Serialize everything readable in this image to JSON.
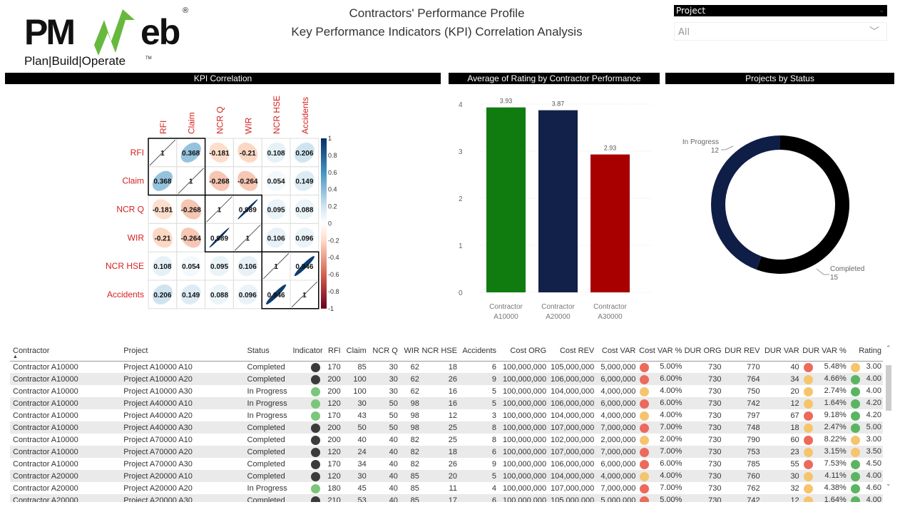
{
  "header": {
    "logo_text": "PMWeb",
    "logo_tagline": "Plan|Build|Operate",
    "title": "Contractors' Performance Profile",
    "subtitle": "Key Performance Indicators (KPI) Correlation Analysis"
  },
  "slicer": {
    "label": "Project",
    "value": "All"
  },
  "panels": {
    "kpi": "KPI Correlation",
    "rating": "Average of Rating by Contractor Performance",
    "status": "Projects by Status"
  },
  "colors": {
    "green": "#107c10",
    "navy": "#12214a",
    "red": "#a80000",
    "completed": "#000000",
    "in_progress": "#0f1e46",
    "dot_red": "#ec6a5c",
    "dot_yellow": "#f6c46c",
    "dot_green": "#5bb462",
    "dot_dark": "#3b3b3b",
    "dot_lightgreen": "#7bc67b"
  },
  "chart_data": [
    {
      "type": "heatmap",
      "title": "KPI Correlation",
      "labels": [
        "RFI",
        "Claim",
        "NCR Q",
        "WIR",
        "NCR HSE",
        "Accidents"
      ],
      "matrix": [
        [
          1,
          0.368,
          -0.181,
          -0.21,
          0.108,
          0.206
        ],
        [
          0.368,
          1,
          -0.268,
          -0.264,
          0.054,
          0.149
        ],
        [
          -0.181,
          -0.268,
          1,
          0.989,
          0.095,
          0.088
        ],
        [
          -0.21,
          -0.264,
          0.989,
          1,
          0.106,
          0.096
        ],
        [
          0.108,
          0.054,
          0.095,
          0.106,
          1,
          0.946
        ],
        [
          0.206,
          0.149,
          0.088,
          0.096,
          0.946,
          1
        ]
      ],
      "colorbar_ticks": [
        "1",
        "0.8",
        "0.6",
        "0.4",
        "0.2",
        "0",
        "-0.2",
        "-0.4",
        "-0.6",
        "-0.8",
        "-1"
      ],
      "clusters": [
        [
          0,
          1
        ],
        [
          2,
          3
        ],
        [
          4,
          5
        ]
      ]
    },
    {
      "type": "bar",
      "title": "Average of Rating by Contractor Performance",
      "categories": [
        "Contractor A10000",
        "Contractor A20000",
        "Contractor A30000"
      ],
      "values": [
        3.93,
        3.87,
        2.93
      ],
      "data_labels": [
        "3.93",
        "3.87",
        "2.93"
      ],
      "ylim": [
        0,
        4
      ],
      "yticks": [
        "0",
        "1",
        "2",
        "3",
        "4"
      ],
      "grid": true
    },
    {
      "type": "pie",
      "donut": true,
      "title": "Projects by Status",
      "slices": [
        {
          "label": "Completed",
          "value": 15
        },
        {
          "label": "In Progress",
          "value": 12
        }
      ]
    }
  ],
  "table": {
    "columns": [
      "Contractor",
      "Project",
      "Status",
      "Indicator",
      "RFI",
      "Claim",
      "NCR Q",
      "WIR",
      "NCR HSE",
      "Accidents",
      "Cost ORG",
      "Cost REV",
      "Cost VAR",
      "Cost VAR %",
      "DUR ORG",
      "DUR REV",
      "DUR VAR",
      "DUR VAR %",
      "Rating"
    ],
    "rows": [
      [
        "Contractor A10000",
        "Project A10000 A10",
        "Completed",
        "dark",
        "170",
        "85",
        "30",
        "62",
        "18",
        "6",
        "100,000,000",
        "105,000,000",
        "5,000,000",
        "red",
        "5.00%",
        "730",
        "770",
        "40",
        "red",
        "5.48%",
        "yellow",
        "3.00"
      ],
      [
        "Contractor A10000",
        "Project A10000 A20",
        "Completed",
        "dark",
        "200",
        "100",
        "30",
        "62",
        "26",
        "9",
        "100,000,000",
        "106,000,000",
        "6,000,000",
        "red",
        "6.00%",
        "730",
        "764",
        "34",
        "yellow",
        "4.66%",
        "green",
        "4.00"
      ],
      [
        "Contractor A10000",
        "Project A10000 A30",
        "In Progress",
        "lightgreen",
        "200",
        "100",
        "30",
        "62",
        "16",
        "5",
        "100,000,000",
        "104,000,000",
        "4,000,000",
        "yellow",
        "4.00%",
        "730",
        "750",
        "20",
        "yellow",
        "2.74%",
        "green",
        "4.00"
      ],
      [
        "Contractor A10000",
        "Project A40000 A10",
        "In Progress",
        "lightgreen",
        "120",
        "30",
        "50",
        "98",
        "16",
        "5",
        "100,000,000",
        "106,000,000",
        "6,000,000",
        "red",
        "6.00%",
        "730",
        "742",
        "12",
        "yellow",
        "1.64%",
        "green",
        "4.20"
      ],
      [
        "Contractor A10000",
        "Project A40000 A20",
        "In Progress",
        "lightgreen",
        "170",
        "43",
        "50",
        "98",
        "12",
        "3",
        "100,000,000",
        "104,000,000",
        "4,000,000",
        "yellow",
        "4.00%",
        "730",
        "797",
        "67",
        "red",
        "9.18%",
        "green",
        "4.20"
      ],
      [
        "Contractor A10000",
        "Project A40000 A30",
        "Completed",
        "dark",
        "200",
        "50",
        "50",
        "98",
        "25",
        "8",
        "100,000,000",
        "107,000,000",
        "7,000,000",
        "red",
        "7.00%",
        "730",
        "748",
        "18",
        "yellow",
        "2.47%",
        "green",
        "5.00"
      ],
      [
        "Contractor A10000",
        "Project A70000 A10",
        "Completed",
        "dark",
        "200",
        "40",
        "40",
        "82",
        "25",
        "8",
        "100,000,000",
        "102,000,000",
        "2,000,000",
        "yellow",
        "2.00%",
        "730",
        "790",
        "60",
        "red",
        "8.22%",
        "yellow",
        "3.00"
      ],
      [
        "Contractor A10000",
        "Project A70000 A20",
        "Completed",
        "dark",
        "120",
        "24",
        "40",
        "82",
        "18",
        "6",
        "100,000,000",
        "107,000,000",
        "7,000,000",
        "red",
        "7.00%",
        "730",
        "753",
        "23",
        "yellow",
        "3.15%",
        "yellow",
        "3.50"
      ],
      [
        "Contractor A10000",
        "Project A70000 A30",
        "Completed",
        "dark",
        "170",
        "34",
        "40",
        "82",
        "26",
        "9",
        "100,000,000",
        "106,000,000",
        "6,000,000",
        "red",
        "6.00%",
        "730",
        "785",
        "55",
        "red",
        "7.53%",
        "green",
        "4.50"
      ],
      [
        "Contractor A20000",
        "Project A20000 A10",
        "Completed",
        "dark",
        "120",
        "30",
        "40",
        "85",
        "20",
        "5",
        "100,000,000",
        "104,000,000",
        "4,000,000",
        "yellow",
        "4.00%",
        "730",
        "760",
        "30",
        "yellow",
        "4.11%",
        "green",
        "4.00"
      ],
      [
        "Contractor A20000",
        "Project A20000 A20",
        "In Progress",
        "lightgreen",
        "180",
        "45",
        "40",
        "85",
        "11",
        "4",
        "100,000,000",
        "107,000,000",
        "7,000,000",
        "red",
        "7.00%",
        "730",
        "762",
        "32",
        "yellow",
        "4.38%",
        "green",
        "4.60"
      ],
      [
        "Contractor A20000",
        "Project A20000 A30",
        "Completed",
        "dark",
        "210",
        "53",
        "40",
        "85",
        "17",
        "6",
        "100,000,000",
        "105,000,000",
        "5,000,000",
        "red",
        "5.00%",
        "730",
        "742",
        "12",
        "yellow",
        "1.64%",
        "green",
        "4.00"
      ]
    ]
  }
}
